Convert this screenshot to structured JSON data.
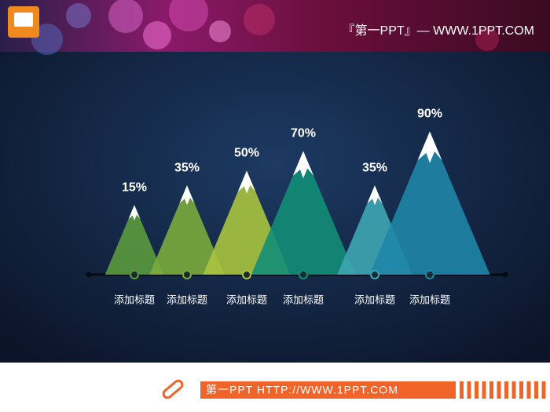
{
  "header": {
    "brand": "『第一PPT』— WWW.1PPT.COM"
  },
  "chart_data": {
    "type": "mountain",
    "categories": [
      "添加标题",
      "添加标题",
      "添加标题",
      "添加标题",
      "添加标题",
      "添加标题"
    ],
    "values": [
      15,
      35,
      50,
      70,
      35,
      90
    ],
    "value_labels": [
      "15%",
      "35%",
      "50%",
      "70%",
      "35%",
      "90%"
    ],
    "colors": [
      "#5a9a3e",
      "#7aab3c",
      "#a8c43e",
      "#138e78",
      "#3ea6b2",
      "#1f86a8"
    ]
  },
  "footer": {
    "text": "第一PPT HTTP://WWW.1PPT.COM"
  }
}
